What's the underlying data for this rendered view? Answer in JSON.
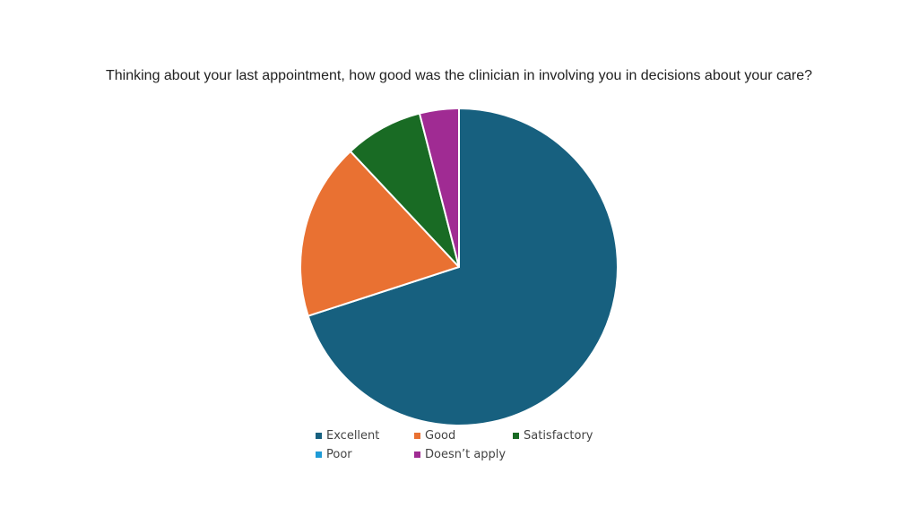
{
  "chart_data": {
    "type": "pie",
    "title": "Thinking about your last appointment, how good was the clinician in involving you in decisions about your care?",
    "categories": [
      "Excellent",
      "Good",
      "Satisfactory",
      "Poor",
      "Doesn’t apply"
    ],
    "values": [
      70,
      18,
      8,
      0,
      4
    ],
    "colors": [
      "#17607f",
      "#e97132",
      "#196b24",
      "#1e9bd7",
      "#a02b93"
    ],
    "legend_position": "bottom"
  }
}
